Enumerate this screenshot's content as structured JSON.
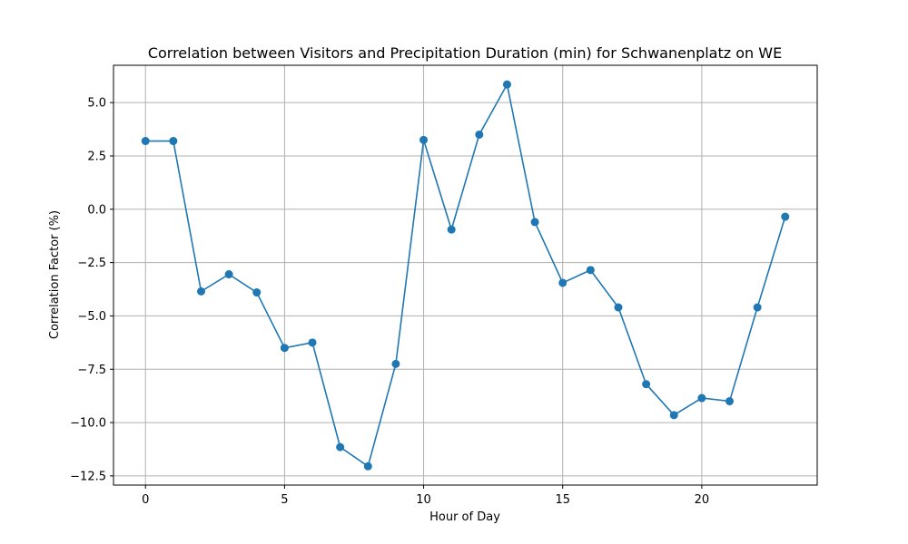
{
  "chart_data": {
    "type": "line",
    "title": "Correlation between Visitors and Precipitation Duration (min) for Schwanenplatz on WE",
    "xlabel": "Hour of Day",
    "ylabel": "Correlation Factor (%)",
    "xlim": [
      -1.15,
      24.15
    ],
    "ylim": [
      -12.93,
      6.75
    ],
    "xticks": [
      0,
      5,
      10,
      15,
      20
    ],
    "xtick_labels": [
      "0",
      "5",
      "10",
      "15",
      "20"
    ],
    "yticks": [
      5.0,
      2.5,
      0.0,
      -2.5,
      -5.0,
      -7.5,
      -10.0,
      -12.5
    ],
    "ytick_labels": [
      "5.0",
      "2.5",
      "0.0",
      "−2.5",
      "−5.0",
      "−7.5",
      "−10.0",
      "−12.5"
    ],
    "grid": true,
    "marker": "circle",
    "color": "#1f77b4",
    "series": [
      {
        "x": [
          0,
          1,
          2,
          3,
          4,
          5,
          6,
          7,
          8,
          9,
          10,
          11,
          12,
          13,
          14,
          15,
          16,
          17,
          18,
          19,
          20,
          21,
          22,
          23
        ],
        "values": [
          3.2,
          3.2,
          -3.85,
          -3.05,
          -3.9,
          -6.5,
          -6.25,
          -11.15,
          -12.05,
          -7.25,
          3.25,
          -0.95,
          3.5,
          5.85,
          -0.6,
          -3.45,
          -2.85,
          -4.6,
          -8.2,
          -9.65,
          -8.85,
          -9.0,
          -4.6,
          -0.35
        ]
      }
    ]
  }
}
